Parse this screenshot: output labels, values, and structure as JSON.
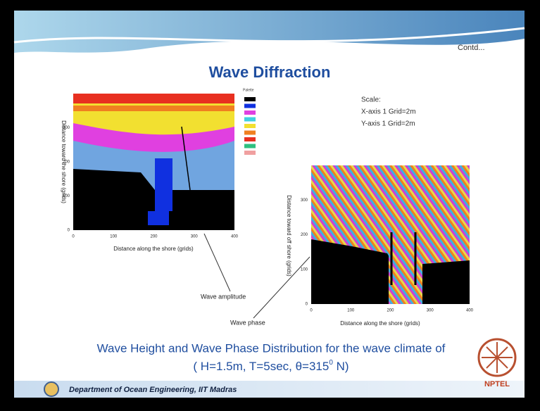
{
  "header": {
    "contd": "Contd...",
    "title": "Wave Diffraction"
  },
  "scale": {
    "heading": "Scale:",
    "x": "X-axis 1 Grid=2m",
    "y": "Y-axis 1 Grid=2m"
  },
  "plots": [
    {
      "palette_title": "Palette",
      "y_label": "Distance toward the shore (grids)",
      "x_label": "Distance along the shore (grids)",
      "x_ticks": [
        0,
        100,
        200,
        300,
        400
      ],
      "y_ticks": [
        0,
        100,
        200,
        300
      ],
      "annotation": "Wave amplitude"
    },
    {
      "y_label": "Distance toward off shore (grids)",
      "x_label": "Distance along the shore (grids)",
      "x_ticks": [
        0,
        100,
        200,
        300,
        400
      ],
      "y_ticks": [
        0,
        100,
        200,
        300
      ],
      "annotation": "Wave phase"
    }
  ],
  "caption": {
    "line1": "Wave Height and Wave Phase Distribution for the wave climate of",
    "line2_start": "( H=1.5m, T=5sec, θ=315",
    "line2_sup": "0",
    "line2_end": " N)"
  },
  "footer": {
    "department": "Department of Ocean Engineering, IIT Madras",
    "logo": "NPTEL"
  }
}
